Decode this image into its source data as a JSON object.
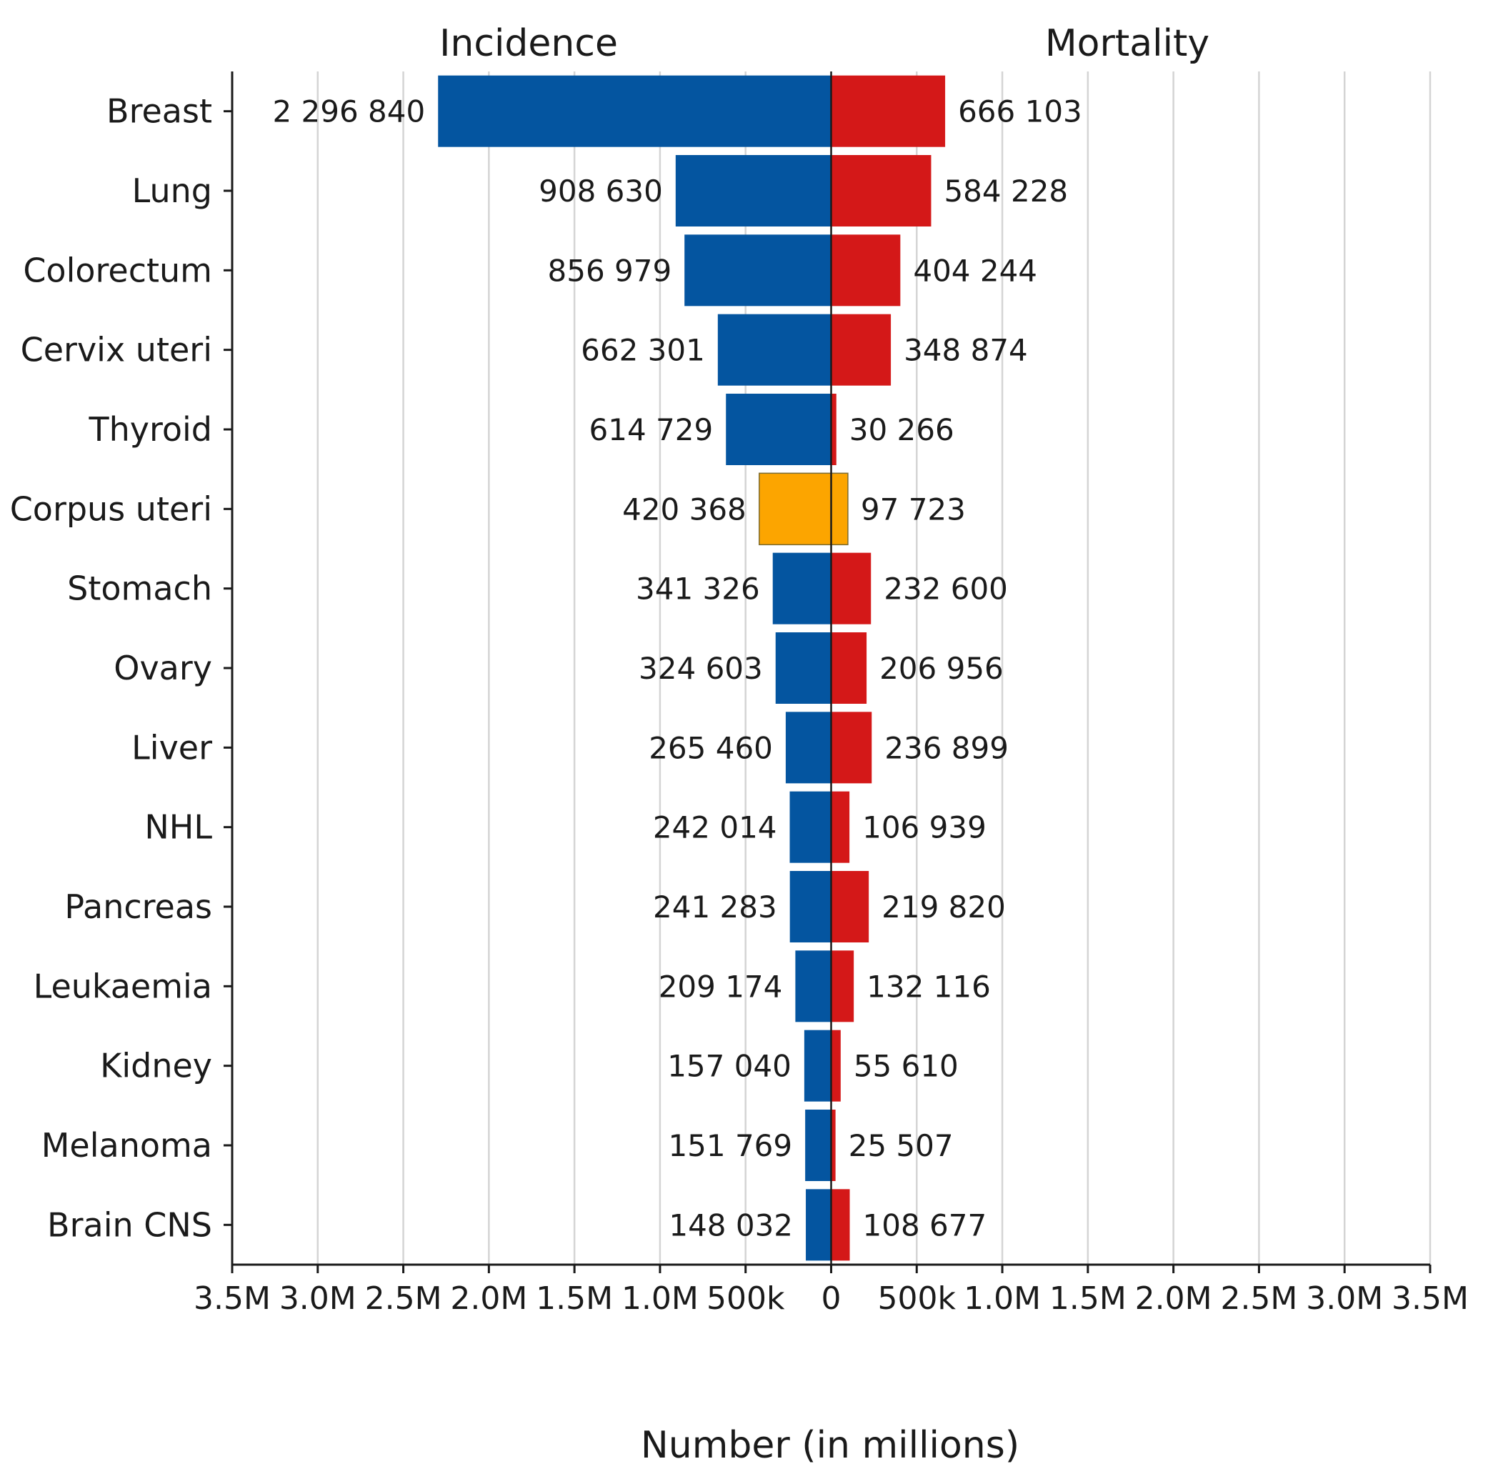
{
  "chart_data": {
    "type": "bar",
    "orientation": "horizontal-diverging",
    "panel_titles": {
      "left": "Incidence",
      "right": "Mortality"
    },
    "xlabel": "Number (in millions)",
    "xlim": [
      -3500000,
      3500000
    ],
    "x_ticks": [
      {
        "value": -3500000,
        "label": "3.5M"
      },
      {
        "value": -3000000,
        "label": "3.0M"
      },
      {
        "value": -2500000,
        "label": "2.5M"
      },
      {
        "value": -2000000,
        "label": "2.0M"
      },
      {
        "value": -1500000,
        "label": "1.5M"
      },
      {
        "value": -1000000,
        "label": "1.0M"
      },
      {
        "value": -500000,
        "label": "500k"
      },
      {
        "value": 0,
        "label": "0"
      },
      {
        "value": 500000,
        "label": "500k"
      },
      {
        "value": 1000000,
        "label": "1.0M"
      },
      {
        "value": 1500000,
        "label": "1.5M"
      },
      {
        "value": 2000000,
        "label": "2.0M"
      },
      {
        "value": 2500000,
        "label": "2.5M"
      },
      {
        "value": 3000000,
        "label": "3.0M"
      },
      {
        "value": 3500000,
        "label": "3.5M"
      }
    ],
    "grid": true,
    "colors": {
      "incidence": "#0455a0",
      "mortality": "#d41818",
      "highlight": "#fca500"
    },
    "highlight_category": "Corpus uteri",
    "categories": [
      "Breast",
      "Lung",
      "Colorectum",
      "Cervix uteri",
      "Thyroid",
      "Corpus uteri",
      "Stomach",
      "Ovary",
      "Liver",
      "NHL",
      "Pancreas",
      "Leukaemia",
      "Kidney",
      "Melanoma",
      "Brain CNS"
    ],
    "series": [
      {
        "name": "Incidence",
        "values": [
          2296840,
          908630,
          856979,
          662301,
          614729,
          420368,
          341326,
          324603,
          265460,
          242014,
          241283,
          209174,
          157040,
          151769,
          148032
        ],
        "value_labels": [
          "2 296 840",
          "908 630",
          "856 979",
          "662 301",
          "614 729",
          "420 368",
          "341 326",
          "324 603",
          "265 460",
          "242 014",
          "241 283",
          "209 174",
          "157 040",
          "151 769",
          "148 032"
        ]
      },
      {
        "name": "Mortality",
        "values": [
          666103,
          584228,
          404244,
          348874,
          30266,
          97723,
          232600,
          206956,
          236899,
          106939,
          219820,
          132116,
          55610,
          25507,
          108677
        ],
        "value_labels": [
          "666 103",
          "584 228",
          "404 244",
          "348 874",
          "30 266",
          "97 723",
          "232 600",
          "206 956",
          "236 899",
          "106 939",
          "219 820",
          "132 116",
          "55 610",
          "25 507",
          "108 677"
        ]
      }
    ]
  }
}
